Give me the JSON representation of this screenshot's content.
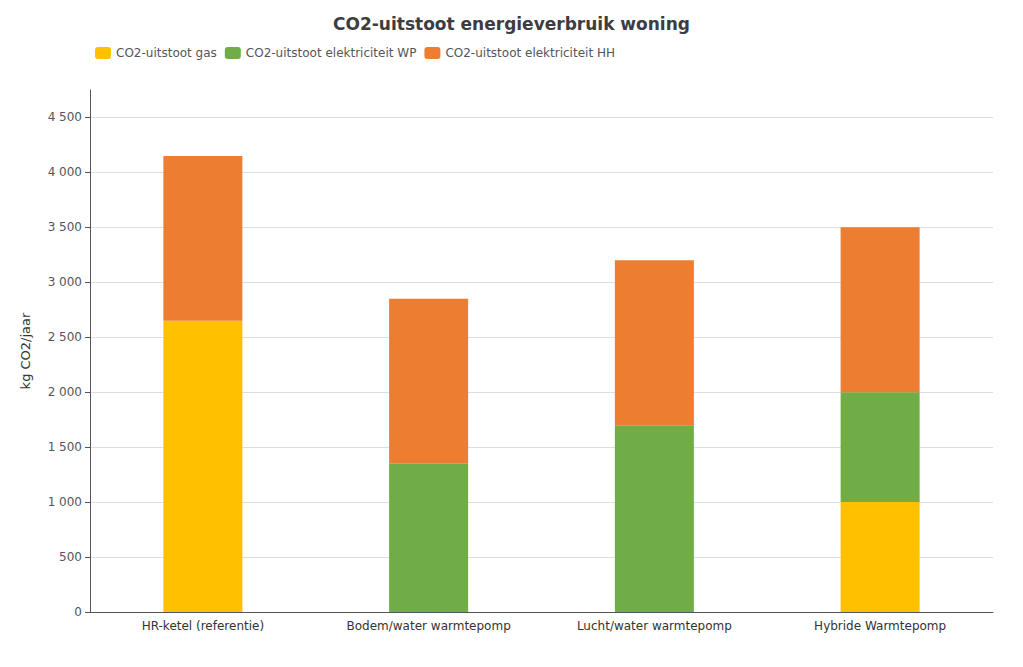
{
  "chart_data": {
    "type": "bar",
    "stacked": true,
    "title": "CO2-uitstoot energieverbruik woning",
    "categories": [
      "HR-ketel (referentie)",
      "Bodem/water warmtepomp",
      "Lucht/water warmtepomp",
      "Hybride Warmtepomp"
    ],
    "series": [
      {
        "name": "CO2-uitstoot gas",
        "color": "#FFC000",
        "values": [
          2650,
          0,
          0,
          1000
        ]
      },
      {
        "name": "CO2-uitstoot elektriciteit WP",
        "color": "#70AD47",
        "values": [
          0,
          1350,
          1700,
          1000
        ]
      },
      {
        "name": "CO2-uitstoot elektriciteit HH",
        "color": "#ED7D31",
        "values": [
          1500,
          1500,
          1500,
          1500
        ]
      }
    ],
    "ylabel": "kg CO2/jaar",
    "ylim": [
      0,
      4750
    ],
    "yticks": [
      0,
      500,
      {
        "value": 1000,
        "label": "1 000"
      },
      {
        "value": 1500,
        "label": "1 500"
      },
      {
        "value": 2000,
        "label": "2 000"
      },
      {
        "value": 2500,
        "label": "2 500"
      },
      {
        "value": 3000,
        "label": "3 000"
      },
      {
        "value": 3500,
        "label": "3 500"
      },
      {
        "value": 4000,
        "label": "4 000"
      },
      {
        "value": 4500,
        "label": "4 500"
      }
    ],
    "grid": true,
    "legend": "upper left"
  }
}
